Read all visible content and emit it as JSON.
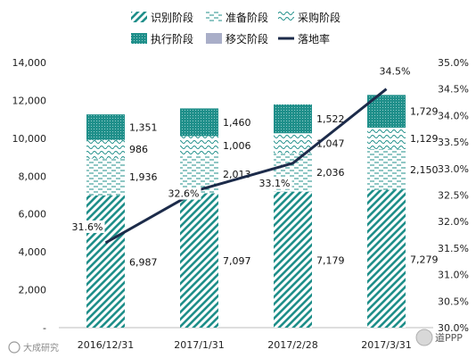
{
  "chart_data": {
    "type": "bar",
    "stacked": true,
    "categories": [
      "2016/12/31",
      "2017/1/31",
      "2017/2/28",
      "2017/3/31"
    ],
    "series": [
      {
        "name": "识别阶段",
        "values": [
          6987,
          7097,
          7179,
          7279
        ],
        "labels": [
          "6,987",
          "7,097",
          "7,179",
          "7,279"
        ],
        "color": "#1f8f8a",
        "pattern": "wide-downward-diagonal"
      },
      {
        "name": "准备阶段",
        "values": [
          1936,
          2013,
          2036,
          2150
        ],
        "labels": [
          "1,936",
          "2,013",
          "2,036",
          "2,150"
        ],
        "color": "#1f8f8a",
        "pattern": "dashed-horizontal"
      },
      {
        "name": "采购阶段",
        "values": [
          986,
          1006,
          1047,
          1129
        ],
        "labels": [
          "986",
          "1,006",
          "1,047",
          "1,129"
        ],
        "color": "#1f8f8a",
        "pattern": "wave"
      },
      {
        "name": "执行阶段",
        "values": [
          1351,
          1460,
          1522,
          1729
        ],
        "labels": [
          "1,351",
          "1,460",
          "1,522",
          "1,729"
        ],
        "color": "#1f8f8a",
        "pattern": "dotted-grid"
      },
      {
        "name": "移交阶段",
        "values": [
          0,
          0,
          0,
          0
        ],
        "color": "#a9aec8",
        "pattern": "solid"
      }
    ],
    "line_series": {
      "name": "落地率",
      "values": [
        31.6,
        32.6,
        33.1,
        34.5
      ],
      "labels": [
        "31.6%",
        "32.6%",
        "33.1%",
        "34.5%"
      ],
      "color": "#1c2b4a",
      "axis": "right"
    },
    "y_left": {
      "min": 0,
      "max": 14000,
      "ticks": [
        "-",
        "2,000",
        "4,000",
        "6,000",
        "8,000",
        "10,000",
        "12,000",
        "14,000"
      ]
    },
    "y_right": {
      "min": 30.0,
      "max": 35.0,
      "ticks": [
        "30.0%",
        "30.5%",
        "31.0%",
        "31.5%",
        "32.0%",
        "32.5%",
        "33.0%",
        "33.5%",
        "34.0%",
        "34.5%",
        "35.0%"
      ]
    },
    "grid": false,
    "legend_position": "top"
  },
  "watermarks": {
    "left": "大成研究",
    "right": "道PPP"
  }
}
